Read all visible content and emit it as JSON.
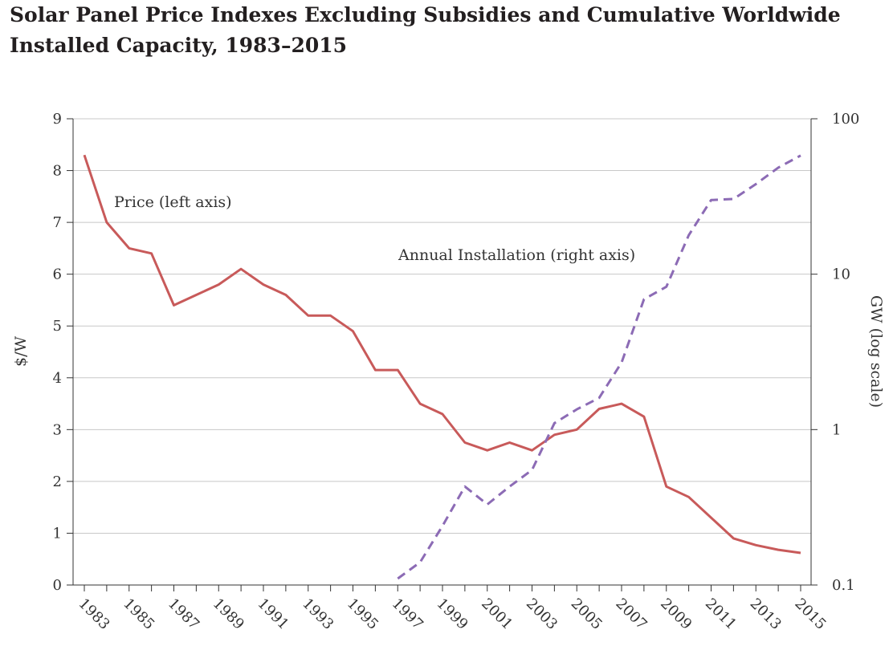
{
  "chart_data": {
    "type": "line",
    "title": "Solar Panel Price Indexes Excluding Subsidies and Cumulative Worldwide Installed Capacity, 1983–2015",
    "x_ticks": [
      "1983",
      "1985",
      "1987",
      "1989",
      "1991",
      "1993",
      "1995",
      "1997",
      "1999",
      "2001",
      "2003",
      "2005",
      "2007",
      "2009",
      "2011",
      "2013",
      "2015"
    ],
    "xlim": [
      1983,
      2015
    ],
    "y_left": {
      "label": "$/W",
      "range": [
        0,
        9
      ],
      "ticks": [
        "0",
        "1",
        "2",
        "3",
        "4",
        "5",
        "6",
        "7",
        "8",
        "9"
      ]
    },
    "y_right": {
      "label": "GW (log scale)",
      "scale": "log",
      "range": [
        0.1,
        100
      ],
      "ticks": [
        "0.1",
        "1",
        "10",
        "100"
      ]
    },
    "grid": true,
    "annotations": [
      {
        "text": "Price (left axis)",
        "series": "price"
      },
      {
        "text": "Annual Installation (right axis)",
        "series": "installation"
      }
    ],
    "series": [
      {
        "id": "price",
        "axis": "left",
        "style": "solid",
        "color": "#c85a5a",
        "x": [
          1983,
          1984,
          1985,
          1986,
          1987,
          1988,
          1989,
          1990,
          1991,
          1992,
          1993,
          1994,
          1995,
          1996,
          1997,
          1998,
          1999,
          2000,
          2001,
          2002,
          2003,
          2004,
          2005,
          2006,
          2007,
          2008,
          2009,
          2010,
          2011,
          2012,
          2013,
          2014,
          2015
        ],
        "values": [
          8.3,
          7.0,
          6.5,
          6.4,
          5.4,
          5.6,
          5.8,
          6.1,
          5.8,
          5.6,
          5.2,
          5.2,
          4.9,
          4.15,
          4.15,
          3.5,
          3.3,
          2.75,
          2.6,
          2.75,
          2.6,
          2.9,
          3.0,
          3.4,
          3.5,
          3.25,
          1.9,
          1.7,
          1.3,
          0.9,
          0.77,
          0.68,
          0.62
        ]
      },
      {
        "id": "installation",
        "axis": "right",
        "style": "dashed",
        "color": "#8c6bb5",
        "x": [
          1997,
          1998,
          1999,
          2000,
          2001,
          2002,
          2003,
          2004,
          2005,
          2006,
          2007,
          2008,
          2009,
          2010,
          2011,
          2012,
          2013,
          2014,
          2015
        ],
        "values": [
          0.11,
          0.14,
          0.24,
          0.43,
          0.33,
          0.43,
          0.55,
          1.1,
          1.35,
          1.6,
          2.7,
          6.9,
          8.3,
          17.8,
          30.0,
          30.5,
          38.0,
          48.5,
          58.0
        ]
      }
    ]
  }
}
